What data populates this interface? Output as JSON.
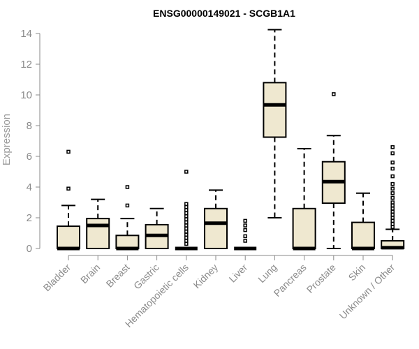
{
  "chart_data": {
    "type": "boxplot",
    "title": "ENSG00000149021 - SCGB1A1",
    "xlabel": "",
    "ylabel": "Expression",
    "ylim": [
      0,
      14.5
    ],
    "yticks": [
      0,
      2,
      4,
      6,
      8,
      10,
      12,
      14
    ],
    "grid": false,
    "colors": {
      "box_fill": "#efe8d0",
      "stroke": "#000000",
      "axis": "#8a8a8a"
    },
    "categories": [
      "Bladder",
      "Brain",
      "Breast",
      "Gastric",
      "Hematopoietic cells",
      "Kidney",
      "Liver",
      "Lung",
      "Pancreas",
      "Prostate",
      "Skin",
      "Unknown / Other"
    ],
    "boxes": [
      {
        "category": "Bladder",
        "whisker_low": 0,
        "q1": 0,
        "median": 0,
        "q3": 1.45,
        "whisker_high": 2.8,
        "outliers": [
          3.9,
          6.3
        ]
      },
      {
        "category": "Brain",
        "whisker_low": 0,
        "q1": 0,
        "median": 1.5,
        "q3": 1.95,
        "whisker_high": 3.2,
        "outliers": []
      },
      {
        "category": "Breast",
        "whisker_low": 0,
        "q1": 0,
        "median": 0,
        "q3": 0.85,
        "whisker_high": 1.95,
        "outliers": [
          2.8,
          4.0
        ]
      },
      {
        "category": "Gastric",
        "whisker_low": 0,
        "q1": 0,
        "median": 0.85,
        "q3": 1.55,
        "whisker_high": 2.6,
        "outliers": []
      },
      {
        "category": "Hematopoietic cells",
        "whisker_low": 0,
        "q1": 0,
        "median": 0,
        "q3": 0,
        "whisker_high": 0,
        "outliers": [
          0.3,
          0.5,
          0.7,
          0.9,
          1.1,
          1.3,
          1.5,
          1.7,
          1.9,
          2.1,
          2.3,
          2.5,
          2.7,
          2.9,
          5.0
        ]
      },
      {
        "category": "Kidney",
        "whisker_low": 0,
        "q1": 0,
        "median": 1.65,
        "q3": 2.6,
        "whisker_high": 3.8,
        "outliers": []
      },
      {
        "category": "Liver",
        "whisker_low": 0,
        "q1": 0,
        "median": 0,
        "q3": 0,
        "whisker_high": 0,
        "outliers": [
          0.5,
          0.8,
          1.2,
          1.5,
          1.8
        ]
      },
      {
        "category": "Lung",
        "whisker_low": 2.0,
        "q1": 7.25,
        "median": 9.35,
        "q3": 10.8,
        "whisker_high": 14.25,
        "outliers": []
      },
      {
        "category": "Pancreas",
        "whisker_low": 0,
        "q1": 0,
        "median": 0,
        "q3": 2.6,
        "whisker_high": 6.5,
        "outliers": []
      },
      {
        "category": "Prostate",
        "whisker_low": 0,
        "q1": 2.95,
        "median": 4.35,
        "q3": 5.65,
        "whisker_high": 7.35,
        "outliers": [
          10.05
        ]
      },
      {
        "category": "Skin",
        "whisker_low": 0,
        "q1": 0,
        "median": 0,
        "q3": 1.7,
        "whisker_high": 3.6,
        "outliers": []
      },
      {
        "category": "Unknown / Other",
        "whisker_low": 0,
        "q1": 0,
        "median": 0.05,
        "q3": 0.5,
        "whisker_high": 1.25,
        "outliers": [
          1.4,
          1.6,
          1.8,
          2.0,
          2.2,
          2.4,
          2.6,
          2.8,
          3.0,
          3.3,
          3.6,
          3.9,
          4.2,
          4.7,
          5.2,
          5.6,
          6.2,
          6.6
        ]
      }
    ]
  }
}
